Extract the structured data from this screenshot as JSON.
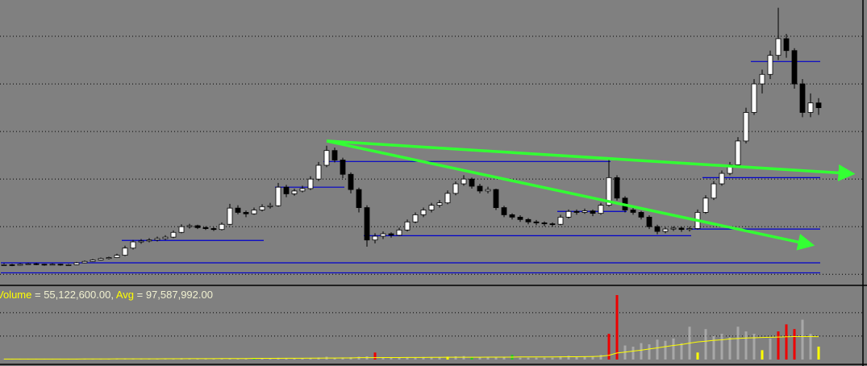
{
  "chart_data": {
    "type": "candlestick",
    "background": "#808080",
    "up_color": "#ffffff",
    "down_color": "#000000",
    "ylim": [
      0.8,
      6.763
    ],
    "yticks": [
      1,
      2,
      3,
      4,
      5,
      6
    ],
    "grid": true,
    "candles": [
      [
        1.2,
        1.23,
        1.18,
        1.2
      ],
      [
        1.2,
        1.22,
        1.17,
        1.19
      ],
      [
        1.19,
        1.23,
        1.18,
        1.21
      ],
      [
        1.21,
        1.24,
        1.2,
        1.22
      ],
      [
        1.22,
        1.24,
        1.19,
        1.21
      ],
      [
        1.21,
        1.22,
        1.18,
        1.2
      ],
      [
        1.2,
        1.23,
        1.19,
        1.21
      ],
      [
        1.21,
        1.22,
        1.18,
        1.2
      ],
      [
        1.2,
        1.22,
        1.18,
        1.2
      ],
      [
        1.2,
        1.26,
        1.19,
        1.24
      ],
      [
        1.24,
        1.29,
        1.23,
        1.27
      ],
      [
        1.27,
        1.32,
        1.26,
        1.3
      ],
      [
        1.3,
        1.35,
        1.29,
        1.33
      ],
      [
        1.33,
        1.37,
        1.31,
        1.35
      ],
      [
        1.35,
        1.43,
        1.34,
        1.4
      ],
      [
        1.4,
        1.6,
        1.38,
        1.55
      ],
      [
        1.55,
        1.72,
        1.52,
        1.68
      ],
      [
        1.68,
        1.74,
        1.64,
        1.7
      ],
      [
        1.7,
        1.76,
        1.67,
        1.72
      ],
      [
        1.72,
        1.79,
        1.69,
        1.75
      ],
      [
        1.75,
        1.82,
        1.72,
        1.78
      ],
      [
        1.78,
        1.92,
        1.76,
        1.88
      ],
      [
        1.88,
        2.05,
        1.86,
        2.0
      ],
      [
        2.0,
        2.06,
        1.96,
        2.02
      ],
      [
        2.02,
        2.04,
        1.95,
        1.98
      ],
      [
        1.98,
        2.01,
        1.93,
        1.96
      ],
      [
        1.96,
        1.99,
        1.91,
        1.94
      ],
      [
        1.94,
        2.09,
        1.92,
        2.05
      ],
      [
        2.05,
        2.48,
        2.03,
        2.39
      ],
      [
        2.39,
        2.45,
        2.26,
        2.3
      ],
      [
        2.3,
        2.34,
        2.2,
        2.27
      ],
      [
        2.27,
        2.4,
        2.25,
        2.35
      ],
      [
        2.35,
        2.47,
        2.32,
        2.42
      ],
      [
        2.42,
        2.5,
        2.38,
        2.44
      ],
      [
        2.44,
        2.92,
        2.42,
        2.83
      ],
      [
        2.83,
        2.88,
        2.62,
        2.69
      ],
      [
        2.69,
        2.8,
        2.65,
        2.75
      ],
      [
        2.75,
        2.86,
        2.72,
        2.8
      ],
      [
        2.8,
        3.06,
        2.77,
        3.0
      ],
      [
        3.0,
        3.36,
        2.96,
        3.29
      ],
      [
        3.29,
        3.7,
        3.25,
        3.6
      ],
      [
        3.6,
        3.66,
        3.35,
        3.4
      ],
      [
        3.4,
        3.45,
        3.02,
        3.1
      ],
      [
        3.1,
        3.14,
        2.7,
        2.78
      ],
      [
        2.78,
        2.82,
        2.3,
        2.4
      ],
      [
        2.4,
        2.45,
        1.58,
        1.72
      ],
      [
        1.72,
        1.86,
        1.65,
        1.8
      ],
      [
        1.8,
        1.9,
        1.74,
        1.85
      ],
      [
        1.85,
        1.88,
        1.77,
        1.82
      ],
      [
        1.82,
        1.98,
        1.8,
        1.93
      ],
      [
        1.93,
        2.15,
        1.9,
        2.1
      ],
      [
        2.1,
        2.3,
        2.07,
        2.25
      ],
      [
        2.25,
        2.4,
        2.2,
        2.35
      ],
      [
        2.35,
        2.5,
        2.3,
        2.45
      ],
      [
        2.45,
        2.56,
        2.4,
        2.5
      ],
      [
        2.5,
        2.76,
        2.47,
        2.7
      ],
      [
        2.7,
        2.95,
        2.66,
        2.9
      ],
      [
        2.9,
        3.08,
        2.86,
        3.0
      ],
      [
        3.0,
        3.03,
        2.8,
        2.85
      ],
      [
        2.85,
        2.9,
        2.7,
        2.75
      ],
      [
        2.75,
        2.84,
        2.7,
        2.78
      ],
      [
        2.78,
        2.8,
        2.35,
        2.4
      ],
      [
        2.4,
        2.44,
        2.2,
        2.25
      ],
      [
        2.25,
        2.28,
        2.15,
        2.2
      ],
      [
        2.2,
        2.24,
        2.1,
        2.15
      ],
      [
        2.15,
        2.18,
        2.05,
        2.1
      ],
      [
        2.1,
        2.14,
        2.03,
        2.08
      ],
      [
        2.08,
        2.11,
        2.01,
        2.06
      ],
      [
        2.06,
        2.09,
        2.0,
        2.05
      ],
      [
        2.05,
        2.25,
        2.03,
        2.2
      ],
      [
        2.2,
        2.36,
        2.17,
        2.32
      ],
      [
        2.32,
        2.36,
        2.25,
        2.3
      ],
      [
        2.3,
        2.38,
        2.27,
        2.33
      ],
      [
        2.33,
        2.36,
        2.22,
        2.28
      ],
      [
        2.28,
        2.5,
        2.25,
        2.45
      ],
      [
        2.45,
        3.4,
        2.42,
        3.03
      ],
      [
        3.03,
        3.08,
        2.55,
        2.6
      ],
      [
        2.6,
        2.64,
        2.3,
        2.35
      ],
      [
        2.35,
        2.4,
        2.25,
        2.3
      ],
      [
        2.3,
        2.33,
        2.15,
        2.2
      ],
      [
        2.2,
        2.24,
        1.95,
        2.0
      ],
      [
        2.0,
        2.04,
        1.84,
        1.9
      ],
      [
        1.9,
        1.99,
        1.86,
        1.95
      ],
      [
        1.95,
        2.01,
        1.91,
        1.97
      ],
      [
        1.97,
        2.0,
        1.89,
        1.94
      ],
      [
        1.94,
        2.0,
        1.9,
        1.96
      ],
      [
        1.96,
        2.36,
        1.94,
        2.3
      ],
      [
        2.3,
        2.66,
        2.27,
        2.6
      ],
      [
        2.6,
        2.96,
        2.56,
        2.9
      ],
      [
        2.9,
        3.18,
        2.86,
        3.12
      ],
      [
        3.12,
        3.36,
        3.08,
        3.3
      ],
      [
        3.3,
        3.88,
        3.26,
        3.8
      ],
      [
        3.8,
        4.5,
        3.75,
        4.4
      ],
      [
        4.4,
        5.1,
        4.35,
        5.0
      ],
      [
        5.0,
        5.3,
        4.8,
        5.2
      ],
      [
        5.2,
        5.7,
        5.1,
        5.6
      ],
      [
        5.6,
        6.6,
        5.5,
        5.95
      ],
      [
        5.95,
        6.05,
        5.55,
        5.7
      ],
      [
        5.7,
        5.75,
        4.9,
        5.0
      ],
      [
        5.0,
        5.1,
        4.3,
        4.4
      ],
      [
        4.4,
        4.8,
        4.3,
        4.6
      ],
      [
        4.6,
        4.7,
        4.35,
        4.5
      ]
    ],
    "level_color": "#0000cc",
    "levels": [
      {
        "value": 3.37,
        "x_from": 40,
        "x_to": 75
      },
      {
        "value": 2.83,
        "x_from": 34,
        "x_to": 42
      },
      {
        "value": 5.47,
        "x_from": 93,
        "x_to": 101
      },
      {
        "value": 3.03,
        "x_from": 87,
        "x_to": 101
      },
      {
        "value": 1.95,
        "x_from": 85,
        "x_to": 101
      },
      {
        "value": 1.81,
        "x_from": 45,
        "x_to": 85
      },
      {
        "value": 1.71,
        "x_from": 15,
        "x_to": 32
      },
      {
        "value": 2.32,
        "x_from": 69,
        "x_to": 77
      },
      {
        "value": 1.24,
        "x_from": 0,
        "x_to": 101
      },
      {
        "value": 1.03,
        "x_from": 0,
        "x_to": 101
      }
    ],
    "trend_color": "#33ff33",
    "trendlines": [
      {
        "x": [
          40,
          104.5
        ],
        "y": [
          3.8,
          3.12
        ]
      },
      {
        "x": [
          40,
          99.5
        ],
        "y": [
          3.8,
          1.64
        ]
      }
    ],
    "volume_color": "#a8a8a8",
    "volume_highlights": [
      {
        "index": 31,
        "color": "#22cc22"
      },
      {
        "index": 46,
        "color": "#ee0000"
      },
      {
        "index": 55,
        "color": "#ffff00"
      },
      {
        "index": 58,
        "color": "#22cc22"
      },
      {
        "index": 63,
        "color": "#22cc22"
      },
      {
        "index": 75,
        "color": "#ee0000"
      },
      {
        "index": 76,
        "color": "#ee0000"
      },
      {
        "index": 86,
        "color": "#ffff00"
      },
      {
        "index": 94,
        "color": "#ffff00"
      },
      {
        "index": 96,
        "color": "#ee0000"
      },
      {
        "index": 97,
        "color": "#ee0000"
      },
      {
        "index": 98,
        "color": "#ee0000"
      },
      {
        "index": 101,
        "color": "#ffff00"
      }
    ],
    "vylim": [
      0,
      330000000
    ],
    "vyticks": [
      100000000,
      200000000
    ],
    "volume": [
      2000000,
      2000000,
      2000000,
      2000000,
      2000000,
      2000000,
      2000000,
      2000000,
      2000000,
      3000000,
      3000000,
      3000000,
      3000000,
      3000000,
      4000000,
      5000000,
      5000000,
      4000000,
      4000000,
      4000000,
      4000000,
      5000000,
      6000000,
      5000000,
      4000000,
      4000000,
      4000000,
      5000000,
      6000000,
      5000000,
      4000000,
      5000000,
      5000000,
      5000000,
      8000000,
      6000000,
      5000000,
      5000000,
      7000000,
      9000000,
      12000000,
      8000000,
      9000000,
      10000000,
      12000000,
      14000000,
      30000000,
      8000000,
      7000000,
      8000000,
      9000000,
      10000000,
      11000000,
      10000000,
      11000000,
      12000000,
      14000000,
      15000000,
      10000000,
      9000000,
      9000000,
      12000000,
      11000000,
      20000000,
      8000000,
      8000000,
      8000000,
      8000000,
      8000000,
      14000000,
      16000000,
      12000000,
      13000000,
      14000000,
      20000000,
      110000000,
      275000000,
      60000000,
      55000000,
      70000000,
      65000000,
      85000000,
      80000000,
      90000000,
      70000000,
      140000000,
      30000000,
      130000000,
      100000000,
      110000000,
      95000000,
      140000000,
      120000000,
      110000000,
      40000000,
      90000000,
      120000000,
      150000000,
      130000000,
      170000000,
      110000000,
      55122600
    ],
    "avg_color": "#ffff00",
    "volume_avg": [
      2000000,
      2000000,
      2000000,
      2000000,
      2000000,
      2000000,
      2000000,
      2000000,
      2000000,
      2000000,
      2500000,
      2500000,
      2500000,
      2500000,
      3000000,
      3000000,
      3000000,
      3000000,
      3000000,
      3000000,
      3500000,
      3500000,
      3500000,
      4000000,
      4000000,
      4000000,
      4000000,
      4500000,
      4500000,
      4500000,
      4500000,
      5000000,
      5000000,
      5000000,
      5000000,
      5500000,
      5500000,
      5500000,
      6000000,
      6000000,
      6500000,
      6500000,
      7000000,
      7000000,
      8000000,
      8000000,
      8000000,
      8500000,
      8500000,
      8500000,
      9000000,
      9000000,
      9000000,
      9500000,
      9500000,
      10000000,
      10000000,
      10000000,
      10000000,
      10000000,
      10500000,
      10500000,
      10500000,
      10500000,
      11000000,
      11000000,
      11000000,
      11000000,
      11000000,
      11500000,
      12000000,
      12000000,
      12500000,
      13000000,
      14000000,
      18000000,
      28000000,
      32000000,
      36000000,
      40000000,
      45000000,
      50000000,
      55000000,
      60000000,
      64000000,
      70000000,
      75000000,
      78000000,
      82000000,
      84000000,
      88000000,
      90000000,
      92000000,
      93000000,
      94000000,
      95000000,
      96000000,
      97000000,
      98000000,
      98000000,
      97800000,
      97587992
    ],
    "readout": [
      {
        "text": "Volume",
        "color": "#ffff00"
      },
      {
        "text": " = 55,122,600.00, ",
        "color": "#f0f0d0"
      },
      {
        "text": "Avg",
        "color": "#ffff00"
      },
      {
        "text": " = 97,587,992.00",
        "color": "#f0f0d0"
      }
    ]
  }
}
